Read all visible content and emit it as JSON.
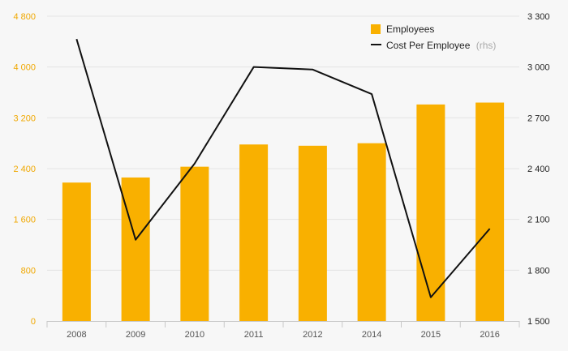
{
  "chart_data": {
    "type": "bar+line",
    "categories": [
      "2008",
      "2009",
      "2010",
      "2011",
      "2012",
      "2014",
      "2015",
      "2016"
    ],
    "series": [
      {
        "name": "Employees",
        "type": "bar",
        "axis": "left",
        "values": [
          2180,
          2260,
          2430,
          2780,
          2760,
          2800,
          3410,
          3440
        ]
      },
      {
        "name": "Cost Per Employee",
        "name_suffix": "(rhs)",
        "type": "line",
        "axis": "right",
        "values": [
          3165,
          1980,
          2430,
          3000,
          2985,
          2840,
          1640,
          2045
        ]
      }
    ],
    "y_left": {
      "ticks": [
        "0",
        "800",
        "1 600",
        "2 400",
        "3 200",
        "4 000",
        "4 800"
      ],
      "ylim": [
        0,
        4800
      ]
    },
    "y_right": {
      "ticks": [
        "1 500",
        "1 800",
        "2 100",
        "2 400",
        "2 700",
        "3 000",
        "3 300"
      ],
      "ylim": [
        1500,
        3300
      ]
    },
    "grid": true,
    "legend_position": "top-right"
  },
  "colors": {
    "bar": "#f9b000",
    "line": "#111111",
    "left_tick": "#f0a800",
    "grid": "#e4e4e4",
    "axis": "#c8c8c8",
    "background": "#f7f7f7"
  }
}
